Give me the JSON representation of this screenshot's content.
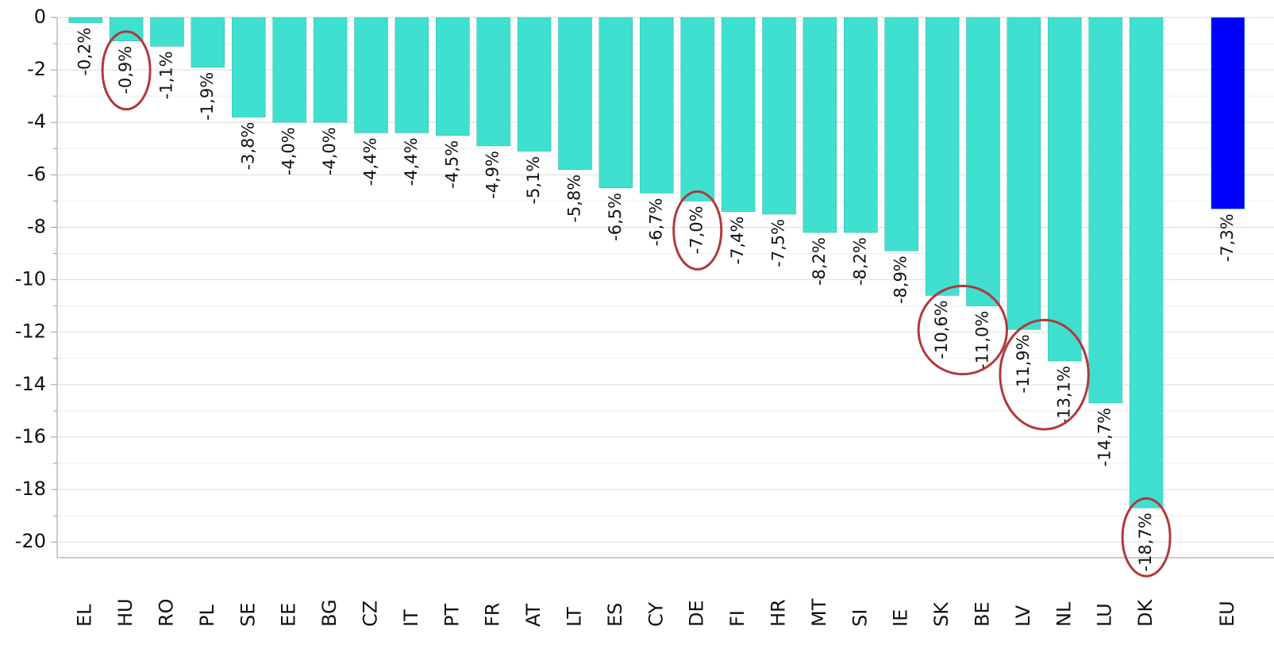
{
  "chart_data": {
    "type": "bar",
    "categories": [
      "EL",
      "HU",
      "RO",
      "PL",
      "SE",
      "EE",
      "BG",
      "CZ",
      "IT",
      "PT",
      "FR",
      "AT",
      "LT",
      "ES",
      "CY",
      "DE",
      "FI",
      "HR",
      "MT",
      "SI",
      "IE",
      "SK",
      "BE",
      "LV",
      "NL",
      "LU",
      "DK",
      null,
      "EU"
    ],
    "values": [
      -0.2,
      -0.9,
      -1.1,
      -1.9,
      -3.8,
      -4.0,
      -4.0,
      -4.4,
      -4.4,
      -4.5,
      -4.9,
      -5.1,
      -5.8,
      -6.5,
      -6.7,
      -7.0,
      -7.4,
      -7.5,
      -8.2,
      -8.2,
      -8.9,
      -10.6,
      -11.0,
      -11.9,
      -13.1,
      -14.7,
      -18.7,
      null,
      -7.3
    ],
    "value_labels": [
      "-0,2%",
      "-0,9%",
      "-1,1%",
      "-1,9%",
      "-3,8%",
      "-4,0%",
      "-4,0%",
      "-4,4%",
      "-4,4%",
      "-4,5%",
      "-4,9%",
      "-5,1%",
      "-5,8%",
      "-6,5%",
      "-6,7%",
      "-7,0%",
      "-7,4%",
      "-7,5%",
      "-8,2%",
      "-8,2%",
      "-8,9%",
      "-10,6%",
      "-11,0%",
      "-11,9%",
      "-13,1%",
      "-14,7%",
      "-18,7%",
      null,
      "-7,3%"
    ],
    "colors": [
      "#40e0d0",
      "#40e0d0",
      "#40e0d0",
      "#40e0d0",
      "#40e0d0",
      "#40e0d0",
      "#40e0d0",
      "#40e0d0",
      "#40e0d0",
      "#40e0d0",
      "#40e0d0",
      "#40e0d0",
      "#40e0d0",
      "#40e0d0",
      "#40e0d0",
      "#40e0d0",
      "#40e0d0",
      "#40e0d0",
      "#40e0d0",
      "#40e0d0",
      "#40e0d0",
      "#40e0d0",
      "#40e0d0",
      "#40e0d0",
      "#40e0d0",
      "#40e0d0",
      "#40e0d0",
      null,
      "#0000ff"
    ],
    "ylim": [
      -20.6,
      0
    ],
    "yticks": [
      0,
      -2,
      -4,
      -6,
      -8,
      -10,
      -12,
      -14,
      -16,
      -18,
      -20
    ],
    "yminor": [
      -1,
      -3,
      -5,
      -7,
      -9,
      -11,
      -13,
      -15,
      -17,
      -19
    ],
    "grid": true,
    "highlight": [
      [
        "HU"
      ],
      [
        "DE"
      ],
      [
        "SK",
        "BE"
      ],
      [
        "LV",
        "NL"
      ],
      [
        "DK"
      ]
    ],
    "highlight_color": "#b03a3a"
  }
}
